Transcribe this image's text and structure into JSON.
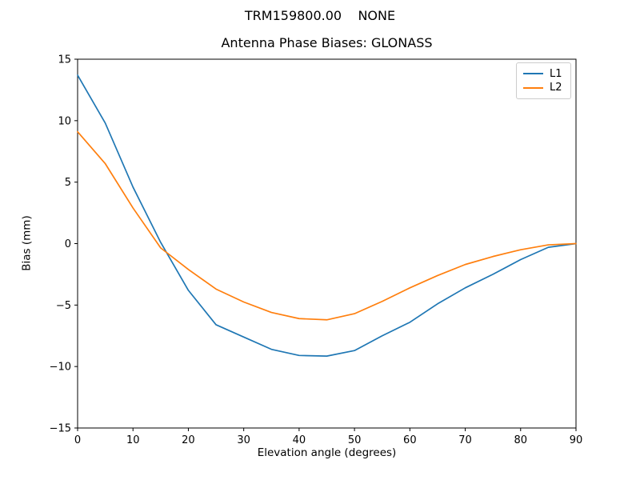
{
  "figure": {
    "suptitle": "TRM159800.00    NONE",
    "background": "#ffffff",
    "text_color": "#000000"
  },
  "chart_data": {
    "type": "line",
    "title": "Antenna Phase Biases: GLONASS",
    "xlabel": "Elevation angle (degrees)",
    "ylabel": "Bias (mm)",
    "xlim": [
      0,
      90
    ],
    "ylim": [
      -15,
      15
    ],
    "xticks": [
      0,
      10,
      20,
      30,
      40,
      50,
      60,
      70,
      80,
      90
    ],
    "yticks": [
      -15,
      -10,
      -5,
      0,
      5,
      10,
      15
    ],
    "grid": false,
    "legend_position": "upper-right",
    "x": [
      0,
      5,
      10,
      15,
      20,
      25,
      30,
      35,
      40,
      45,
      50,
      55,
      60,
      65,
      70,
      75,
      80,
      85,
      90
    ],
    "series": [
      {
        "name": "L1",
        "color": "#1f77b4",
        "values": [
          13.7,
          9.8,
          4.6,
          0.1,
          -3.8,
          -6.6,
          -7.6,
          -8.6,
          -9.1,
          -9.15,
          -8.7,
          -7.5,
          -6.4,
          -4.9,
          -3.6,
          -2.5,
          -1.3,
          -0.3,
          0.0
        ]
      },
      {
        "name": "L2",
        "color": "#ff7f0e",
        "values": [
          9.1,
          6.5,
          2.9,
          -0.35,
          -2.1,
          -3.7,
          -4.75,
          -5.6,
          -6.1,
          -6.2,
          -5.7,
          -4.7,
          -3.6,
          -2.6,
          -1.7,
          -1.05,
          -0.5,
          -0.1,
          0.0
        ]
      }
    ]
  }
}
